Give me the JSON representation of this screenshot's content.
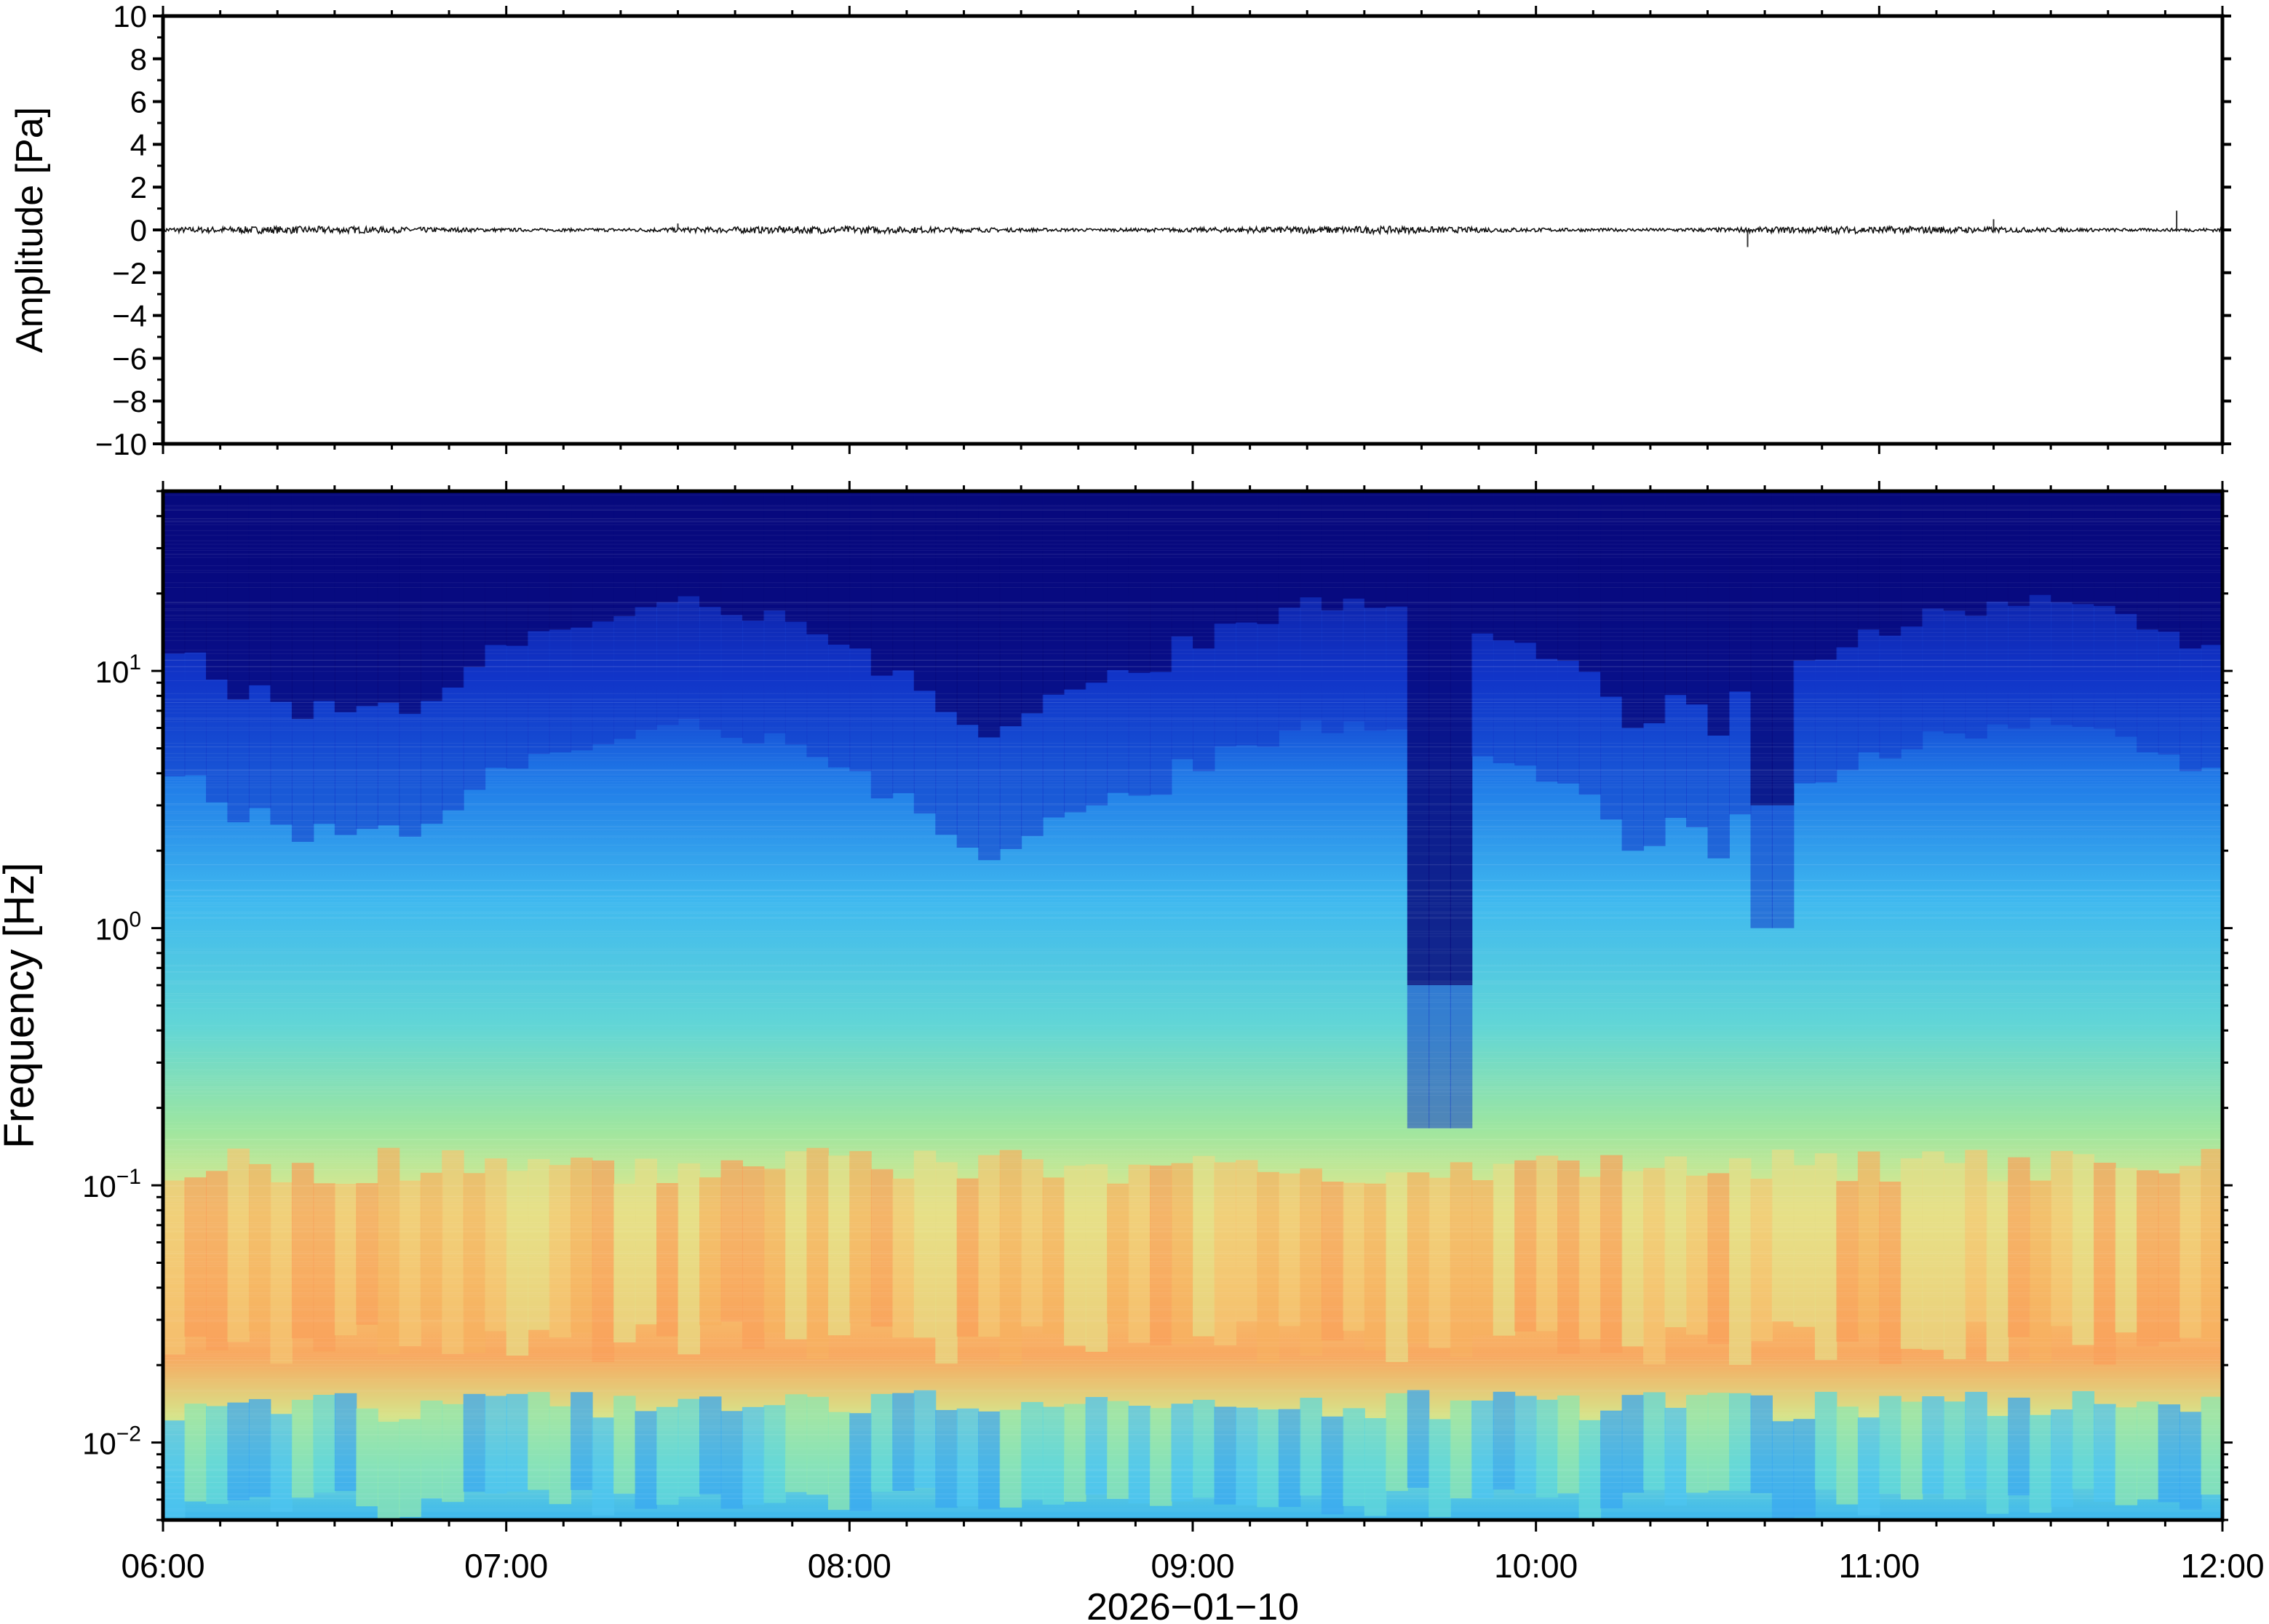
{
  "chart_data": [
    {
      "type": "line",
      "ylabel": "Amplitude [Pa]",
      "xlabel": "",
      "ylim": [
        -10,
        10
      ],
      "ytick_labels": [
        "10",
        "8",
        "6",
        "4",
        "2",
        "0",
        "−2",
        "−4",
        "−6",
        "−8",
        "−10"
      ],
      "ytick_values": [
        10,
        8,
        6,
        4,
        2,
        0,
        -2,
        -4,
        -6,
        -8,
        -10
      ],
      "series": [
        {
          "x": [
            "06:00",
            "07:00",
            "07:30",
            "08:00",
            "09:00",
            "10:00",
            "10:37",
            "11:00",
            "11:20",
            "11:52",
            "12:00"
          ],
          "values": [
            0.0,
            0.05,
            0.3,
            0.1,
            0.05,
            0.0,
            -0.8,
            0.1,
            0.5,
            0.9,
            0.0
          ]
        }
      ]
    },
    {
      "type": "heatmap",
      "ylabel": "Frequency [Hz]",
      "xlabel": "2026−01−10",
      "x_tick_labels": [
        "06:00",
        "07:00",
        "08:00",
        "09:00",
        "10:00",
        "11:00",
        "12:00"
      ],
      "y_scale": "log",
      "ylim": [
        0.005,
        50
      ],
      "y_tick_labels": [
        {
          "base": "10",
          "exp": "1"
        },
        {
          "base": "10",
          "exp": "0"
        },
        {
          "base": "10",
          "exp": "−1"
        },
        {
          "base": "10",
          "exp": "−2"
        }
      ],
      "y_tick_values": [
        10,
        1,
        0.1,
        0.01
      ],
      "colormap": "jet",
      "colors": {
        "low": "#00007f",
        "mid": "#7fff7f",
        "high": "#ff7f00"
      },
      "notes_visible": "quiet (dark blue) band near 09:45 and broadband energy strongest below 0.1 Hz"
    }
  ]
}
